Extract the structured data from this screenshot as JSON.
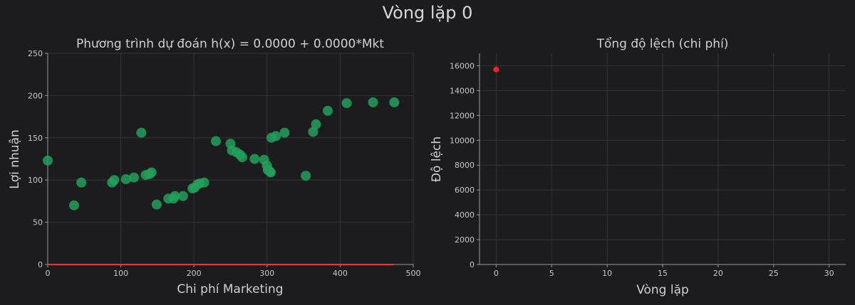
{
  "figure": {
    "suptitle": "Vòng lặp 0"
  },
  "chart_data": [
    {
      "type": "scatter",
      "title": "Phương trình dự đoán h(x) = 0.0000 + 0.0000*Mkt",
      "xlabel": "Chi phí Marketing",
      "ylabel": "Lợi nhuận",
      "xlim": [
        0,
        500
      ],
      "ylim": [
        0,
        250
      ],
      "xticks": [
        0,
        100,
        200,
        300,
        400,
        500
      ],
      "yticks": [
        0,
        50,
        100,
        150,
        200,
        250
      ],
      "grid": true,
      "colors": {
        "points": "#22a05a",
        "line": "#ff2a2a"
      },
      "points": [
        [
          0,
          123
        ],
        [
          36,
          70
        ],
        [
          46,
          97
        ],
        [
          88,
          97
        ],
        [
          91,
          100
        ],
        [
          107,
          101
        ],
        [
          118,
          103
        ],
        [
          128,
          156
        ],
        [
          134,
          106
        ],
        [
          139,
          107
        ],
        [
          142,
          109
        ],
        [
          149,
          71
        ],
        [
          165,
          78
        ],
        [
          172,
          78
        ],
        [
          174,
          81
        ],
        [
          185,
          81
        ],
        [
          198,
          90
        ],
        [
          201,
          91
        ],
        [
          205,
          95
        ],
        [
          208,
          96
        ],
        [
          214,
          97
        ],
        [
          230,
          146
        ],
        [
          250,
          143
        ],
        [
          252,
          135
        ],
        [
          258,
          133
        ],
        [
          263,
          130
        ],
        [
          266,
          127
        ],
        [
          283,
          125
        ],
        [
          296,
          124
        ],
        [
          300,
          117
        ],
        [
          301,
          112
        ],
        [
          304,
          110
        ],
        [
          305,
          109
        ],
        [
          306,
          150
        ],
        [
          312,
          152
        ],
        [
          324,
          156
        ],
        [
          353,
          105
        ],
        [
          363,
          157
        ],
        [
          367,
          166
        ],
        [
          383,
          182
        ],
        [
          409,
          191
        ],
        [
          445,
          192
        ],
        [
          474,
          192
        ]
      ],
      "line": {
        "x": [
          0,
          474
        ],
        "y": [
          0,
          0
        ]
      }
    },
    {
      "type": "scatter",
      "title": "Tổng độ lệch (chi phí)",
      "xlabel": "Vòng lặp",
      "ylabel": "Độ lệch",
      "xlim": [
        -1.5,
        31.5
      ],
      "ylim": [
        0,
        17000
      ],
      "xticks": [
        0,
        5,
        10,
        15,
        20,
        25,
        30
      ],
      "yticks": [
        0,
        2000,
        4000,
        6000,
        8000,
        10000,
        12000,
        14000,
        16000
      ],
      "grid": true,
      "colors": {
        "points": "#ff2020"
      },
      "points": [
        [
          0,
          15700
        ]
      ]
    }
  ]
}
